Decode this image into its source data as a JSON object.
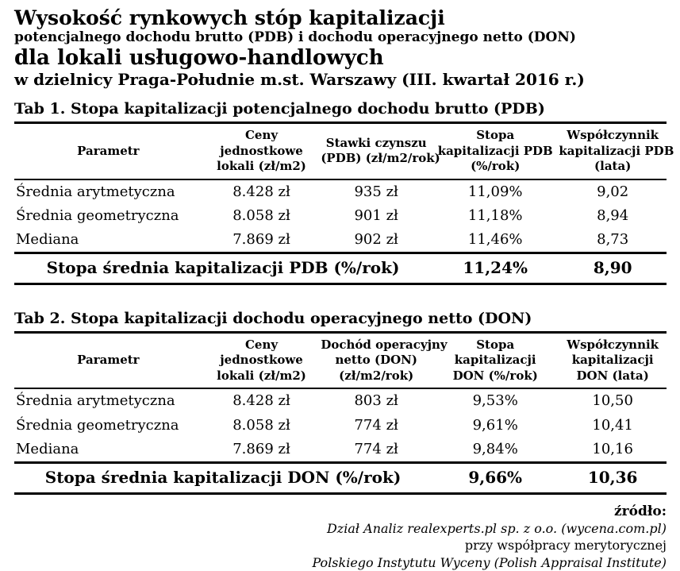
{
  "header": {
    "title_line1": "Wysokość rynkowych stóp kapitalizacji",
    "subtitle_line1": "potencjalnego dochodu brutto (PDB) i dochodu operacyjnego netto (DON)",
    "title_line2": "dla lokali usługowo-handlowych",
    "subtitle_line2": "w dzielnicy Praga-Południe m.st. Warszawy (III. kwartał 2016 r.)"
  },
  "tables": [
    {
      "caption": "Tab 1. Stopa kapitalizacji potencjalnego dochodu brutto (PDB)",
      "columns": [
        "Parametr",
        "Ceny\njednostkowe\nlokali (zł/m2)",
        "Stawki czynszu\n(PDB) (zł/m2/rok)",
        "Stopa\nkapitalizacji PDB\n(%/rok)",
        "Współczynnik\nkapitalizacji PDB\n(lata)"
      ],
      "rows": [
        [
          "Średnia arytmetyczna",
          "8.428 zł",
          "935 zł",
          "11,09%",
          "9,02"
        ],
        [
          "Średnia geometryczna",
          "8.058 zł",
          "901 zł",
          "11,18%",
          "8,94"
        ],
        [
          "Mediana",
          "7.869 zł",
          "902 zł",
          "11,46%",
          "8,73"
        ]
      ],
      "summary": {
        "label": "Stopa średnia kapitalizacji PDB (%/rok)",
        "rate": "11,24%",
        "coefficient": "8,90"
      }
    },
    {
      "caption": "Tab 2. Stopa kapitalizacji dochodu operacyjnego netto (DON)",
      "columns": [
        "Parametr",
        "Ceny\njednostkowe\nlokali (zł/m2)",
        "Dochód operacyjny\nnetto (DON)\n(zł/m2/rok)",
        "Stopa\nkapitalizacji\nDON (%/rok)",
        "Współczynnik\nkapitalizacji\nDON (lata)"
      ],
      "rows": [
        [
          "Średnia arytmetyczna",
          "8.428 zł",
          "803 zł",
          "9,53%",
          "10,50"
        ],
        [
          "Średnia geometryczna",
          "8.058 zł",
          "774 zł",
          "9,61%",
          "10,41"
        ],
        [
          "Mediana",
          "7.869 zł",
          "774 zł",
          "9,84%",
          "10,16"
        ]
      ],
      "summary": {
        "label": "Stopa średnia kapitalizacji DON (%/rok)",
        "rate": "9,66%",
        "coefficient": "10,36"
      }
    }
  ],
  "footer": {
    "source_label": "źródło:",
    "line1": "Dział Analiz realexperts.pl sp. z o.o. (wycena.com.pl)",
    "line2": "przy współpracy merytorycznej",
    "line3": "Polskiego Instytutu Wyceny (Polish Appraisal Institute)"
  },
  "colors": {
    "text": "#000000",
    "background": "#ffffff",
    "rule": "#000000"
  }
}
